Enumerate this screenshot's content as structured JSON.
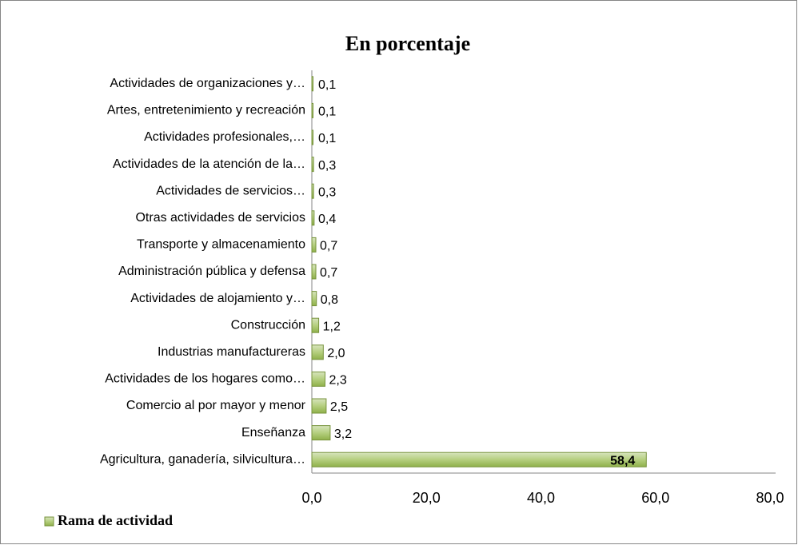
{
  "chart_data": {
    "type": "bar",
    "orientation": "horizontal",
    "title": "En porcentaje",
    "categories": [
      "Actividades de organizaciones y…",
      "Artes, entretenimiento y recreación",
      "Actividades profesionales,…",
      "Actividades de la atención de la…",
      "Actividades de servicios…",
      "Otras actividades de servicios",
      "Transporte y almacenamiento",
      "Administración pública y defensa",
      "Actividades de alojamiento y…",
      "Construcción",
      "Industrias manufactureras",
      "Actividades de los hogares como…",
      "Comercio al por mayor y menor",
      "Enseñanza",
      "Agricultura, ganadería, silvicultura…"
    ],
    "series": [
      {
        "name": "Rama de actividad",
        "color": "#9bbb59",
        "values": [
          0.1,
          0.1,
          0.1,
          0.3,
          0.3,
          0.4,
          0.7,
          0.7,
          0.8,
          1.2,
          2.0,
          2.3,
          2.5,
          3.2,
          58.4
        ],
        "value_labels": [
          "0,1",
          "0,1",
          "0,1",
          "0,3",
          "0,3",
          "0,4",
          "0,7",
          "0,7",
          "0,8",
          "1,2",
          "2,0",
          "2,3",
          "2,5",
          "3,2",
          "58,4"
        ]
      }
    ],
    "xlim": [
      0,
      80
    ],
    "xticks": [
      {
        "value": 0,
        "label": "0,0"
      },
      {
        "value": 20,
        "label": "20,0"
      },
      {
        "value": 40,
        "label": "40,0"
      },
      {
        "value": 60,
        "label": "60,0"
      },
      {
        "value": 80,
        "label": "80,0"
      }
    ],
    "legend": "bottom-left"
  }
}
